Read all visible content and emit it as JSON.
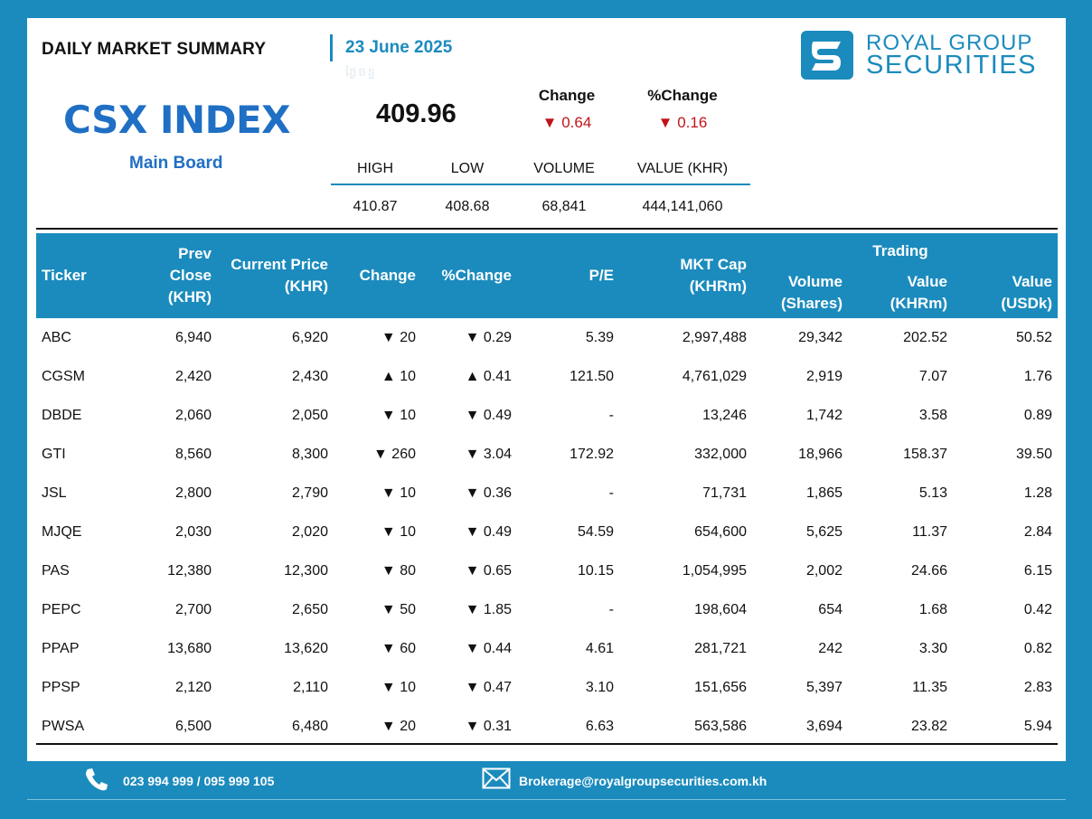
{
  "header": {
    "title": "DAILY MARKET SUMMARY",
    "date": "23 June 2025",
    "ghost_text": "ថ្ងៃចន្ទ"
  },
  "logo": {
    "line1": "ROYAL GROUP",
    "line2": "SECURITIES"
  },
  "index": {
    "name": "CSX INDEX",
    "board": "Main Board",
    "value": "409.96",
    "change_label": "Change",
    "pct_change_label": "%Change",
    "change": "▼ 0.64",
    "pct_change": "▼ 0.16",
    "stats_headers": [
      "HIGH",
      "LOW",
      "VOLUME",
      "VALUE (KHR)"
    ],
    "stats_values": [
      "410.87",
      "408.68",
      "68,841",
      "444,141,060"
    ]
  },
  "table": {
    "headers": {
      "ticker": "Ticker",
      "prev_close": [
        "Prev",
        "Close",
        "(KHR)"
      ],
      "current_price": [
        "Current Price",
        "(KHR)"
      ],
      "change": "Change",
      "pct_change": "%Change",
      "pe": "P/E",
      "mkt_cap": [
        "MKT Cap",
        "(KHRm)"
      ],
      "volume": [
        "Volume",
        "(Shares)"
      ],
      "trading": "Trading",
      "value_khr": [
        "Value",
        "(KHRm)"
      ],
      "value_usd": [
        "Value",
        "(USDk)"
      ]
    },
    "rows": [
      {
        "ticker": "ABC",
        "prev": "6,940",
        "curr": "6,920",
        "dir": "down",
        "chg": "20",
        "pct": "0.29",
        "pe": "5.39",
        "cap": "2,997,488",
        "vol": "29,342",
        "vkhr": "202.52",
        "vusd": "50.52"
      },
      {
        "ticker": "CGSM",
        "prev": "2,420",
        "curr": "2,430",
        "dir": "up",
        "chg": "10",
        "pct": "0.41",
        "pe": "121.50",
        "cap": "4,761,029",
        "vol": "2,919",
        "vkhr": "7.07",
        "vusd": "1.76"
      },
      {
        "ticker": "DBDE",
        "prev": "2,060",
        "curr": "2,050",
        "dir": "down",
        "chg": "10",
        "pct": "0.49",
        "pe": "-",
        "cap": "13,246",
        "vol": "1,742",
        "vkhr": "3.58",
        "vusd": "0.89"
      },
      {
        "ticker": "GTI",
        "prev": "8,560",
        "curr": "8,300",
        "dir": "down",
        "chg": "260",
        "pct": "3.04",
        "pe": "172.92",
        "cap": "332,000",
        "vol": "18,966",
        "vkhr": "158.37",
        "vusd": "39.50"
      },
      {
        "ticker": "JSL",
        "prev": "2,800",
        "curr": "2,790",
        "dir": "down",
        "chg": "10",
        "pct": "0.36",
        "pe": "-",
        "cap": "71,731",
        "vol": "1,865",
        "vkhr": "5.13",
        "vusd": "1.28"
      },
      {
        "ticker": "MJQE",
        "prev": "2,030",
        "curr": "2,020",
        "dir": "down",
        "chg": "10",
        "pct": "0.49",
        "pe": "54.59",
        "cap": "654,600",
        "vol": "5,625",
        "vkhr": "11.37",
        "vusd": "2.84"
      },
      {
        "ticker": "PAS",
        "prev": "12,380",
        "curr": "12,300",
        "dir": "down",
        "chg": "80",
        "pct": "0.65",
        "pe": "10.15",
        "cap": "1,054,995",
        "vol": "2,002",
        "vkhr": "24.66",
        "vusd": "6.15"
      },
      {
        "ticker": "PEPC",
        "prev": "2,700",
        "curr": "2,650",
        "dir": "down",
        "chg": "50",
        "pct": "1.85",
        "pe": "-",
        "cap": "198,604",
        "vol": "654",
        "vkhr": "1.68",
        "vusd": "0.42"
      },
      {
        "ticker": "PPAP",
        "prev": "13,680",
        "curr": "13,620",
        "dir": "down",
        "chg": "60",
        "pct": "0.44",
        "pe": "4.61",
        "cap": "281,721",
        "vol": "242",
        "vkhr": "3.30",
        "vusd": "0.82"
      },
      {
        "ticker": "PPSP",
        "prev": "2,120",
        "curr": "2,110",
        "dir": "down",
        "chg": "10",
        "pct": "0.47",
        "pe": "3.10",
        "cap": "151,656",
        "vol": "5,397",
        "vkhr": "11.35",
        "vusd": "2.83"
      },
      {
        "ticker": "PWSA",
        "prev": "6,500",
        "curr": "6,480",
        "dir": "down",
        "chg": "20",
        "pct": "0.31",
        "pe": "6.63",
        "cap": "563,586",
        "vol": "3,694",
        "vkhr": "23.82",
        "vusd": "5.94"
      }
    ]
  },
  "footer": {
    "phone": "023 994 999 / 095 999 105",
    "email": "Brokerage@royalgroupsecurities.com.kh"
  },
  "colors": {
    "brand_blue": "#1b8bbd",
    "index_blue": "#1f6fc5",
    "down_red": "#c0141b",
    "up_green": "#2f6b1e"
  },
  "icons": [
    "phone-icon",
    "mail-icon",
    "logo-mark-icon"
  ]
}
